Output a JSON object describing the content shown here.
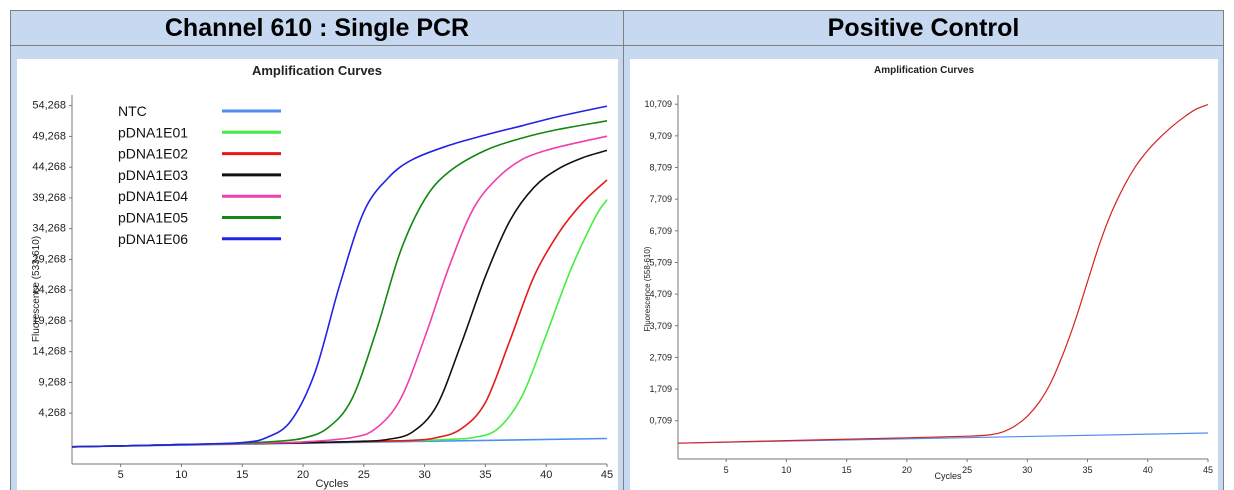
{
  "panels": [
    {
      "header": "Channel 610 : Single PCR"
    },
    {
      "header": "Positive Control"
    }
  ],
  "chart_data": [
    {
      "type": "line",
      "title": "Amplification Curves",
      "xlabel": "Cycles",
      "ylabel": "Fluorescence (533-610)",
      "xlim": [
        1,
        45
      ],
      "ylim": [
        -4000,
        56000
      ],
      "xticks": [
        5,
        10,
        15,
        20,
        25,
        30,
        35,
        40,
        45
      ],
      "yticks": [
        4268,
        9268,
        14268,
        19268,
        24268,
        29268,
        34268,
        39268,
        44268,
        49268,
        54268
      ],
      "ytick_labels": [
        "4,268",
        "9,268",
        "14,268",
        "19,268",
        "24,268",
        "29,268",
        "34,268",
        "39,268",
        "44,268",
        "49,268",
        "54,268"
      ],
      "legend_position": "top-left",
      "series": [
        {
          "name": "NTC",
          "color": "#4f8ef0",
          "x": [
            1,
            45
          ],
          "y": [
            -1200,
            150
          ]
        },
        {
          "name": "pDNA1E01",
          "color": "#44ee44",
          "x": [
            1,
            5,
            10,
            15,
            20,
            25,
            30,
            32,
            34,
            36,
            38,
            40,
            42,
            44,
            45
          ],
          "y": [
            -1200,
            -1050,
            -850,
            -700,
            -550,
            -350,
            -150,
            0,
            300,
            1700,
            7000,
            17000,
            27500,
            36000,
            39000
          ]
        },
        {
          "name": "pDNA1E02",
          "color": "#e61919",
          "x": [
            1,
            5,
            10,
            15,
            20,
            25,
            29,
            31,
            33,
            35,
            37,
            39,
            41,
            43,
            45
          ],
          "y": [
            -1200,
            -1050,
            -850,
            -700,
            -550,
            -350,
            -150,
            300,
            1700,
            6000,
            16000,
            26500,
            33500,
            38500,
            42200
          ]
        },
        {
          "name": "pDNA1E03",
          "color": "#111111",
          "x": [
            1,
            5,
            10,
            15,
            20,
            25,
            27,
            29,
            31,
            33,
            35,
            37,
            39,
            41,
            43,
            45
          ],
          "y": [
            -1200,
            -1050,
            -850,
            -700,
            -550,
            -300,
            0,
            1200,
            5500,
            15500,
            26500,
            35500,
            41000,
            44000,
            45800,
            47000
          ]
        },
        {
          "name": "pDNA1E04",
          "color": "#ef3fa8",
          "x": [
            1,
            5,
            10,
            15,
            20,
            24,
            26,
            28,
            30,
            32,
            34,
            36,
            38,
            40,
            42,
            45
          ],
          "y": [
            -1200,
            -1050,
            -850,
            -700,
            -400,
            300,
            1800,
            6500,
            16500,
            28000,
            37500,
            42500,
            45500,
            47000,
            48000,
            49300
          ]
        },
        {
          "name": "pDNA1E05",
          "color": "#118811",
          "x": [
            1,
            5,
            10,
            15,
            18,
            20,
            22,
            24,
            26,
            28,
            30,
            32,
            35,
            38,
            41,
            45
          ],
          "y": [
            -1200,
            -1050,
            -850,
            -600,
            -300,
            200,
            1800,
            6500,
            17500,
            30500,
            39000,
            43500,
            47000,
            49000,
            50400,
            51800
          ]
        },
        {
          "name": "pDNA1E06",
          "color": "#2222e6",
          "x": [
            1,
            5,
            10,
            15,
            17,
            19,
            21,
            23,
            25,
            27,
            29,
            32,
            35,
            38,
            41,
            45
          ],
          "y": [
            -1200,
            -1050,
            -850,
            -500,
            300,
            3000,
            11000,
            25000,
            37000,
            42500,
            45500,
            47800,
            49500,
            51000,
            52500,
            54200
          ]
        }
      ]
    },
    {
      "type": "line",
      "title": "Amplification Curves",
      "xlabel": "Cycles",
      "ylabel": "Fluorescence (558-610)",
      "xlim": [
        1,
        45
      ],
      "ylim": [
        -0.5,
        11.0
      ],
      "xticks": [
        5,
        10,
        15,
        20,
        25,
        30,
        35,
        40,
        45
      ],
      "yticks": [
        0.709,
        1.709,
        2.709,
        3.709,
        4.709,
        5.709,
        6.709,
        7.709,
        8.709,
        9.709,
        10.709
      ],
      "ytick_labels": [
        "0,709",
        "1,709",
        "2,709",
        "3,709",
        "4,709",
        "5,709",
        "6,709",
        "7,709",
        "8,709",
        "9,709",
        "10,709"
      ],
      "series": [
        {
          "color": "#4f8ef0",
          "x": [
            1,
            45
          ],
          "y": [
            0.0,
            0.32
          ]
        },
        {
          "color": "#d62222",
          "x": [
            1,
            10,
            20,
            25,
            27,
            28,
            29,
            30,
            31,
            32,
            33,
            34,
            35,
            36,
            37,
            38,
            39,
            40,
            41,
            42,
            43,
            44,
            45
          ],
          "y": [
            0.0,
            0.08,
            0.17,
            0.22,
            0.27,
            0.36,
            0.55,
            0.85,
            1.3,
            1.95,
            2.85,
            3.9,
            5.1,
            6.3,
            7.3,
            8.1,
            8.75,
            9.25,
            9.65,
            10.0,
            10.3,
            10.55,
            10.7
          ]
        }
      ]
    }
  ]
}
